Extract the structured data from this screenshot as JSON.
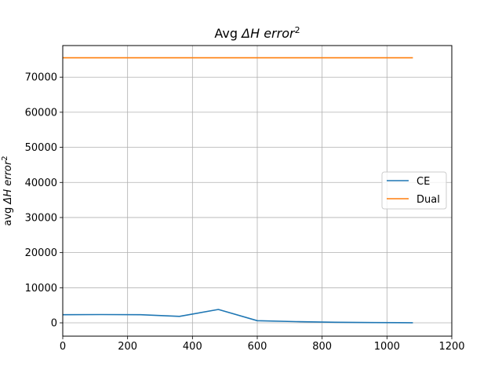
{
  "chart_data": {
    "type": "line",
    "title": "Avg ΔH error²",
    "xlabel": "",
    "ylabel": "avg ΔH error²",
    "xlim": [
      0,
      1200
    ],
    "ylim": [
      -3800,
      79000
    ],
    "x_ticks": [
      0,
      200,
      400,
      600,
      800,
      1000,
      1200
    ],
    "y_ticks": [
      0,
      10000,
      20000,
      30000,
      40000,
      50000,
      60000,
      70000
    ],
    "grid": true,
    "legend_position": "center-right",
    "series": [
      {
        "name": "CE",
        "color": "#1f77b4",
        "x": [
          0,
          120,
          240,
          360,
          480,
          600,
          720,
          840,
          960,
          1080
        ],
        "y": [
          2300,
          2350,
          2300,
          1850,
          3800,
          600,
          350,
          150,
          80,
          30
        ]
      },
      {
        "name": "Dual",
        "color": "#ff7f0e",
        "x": [
          0,
          120,
          240,
          360,
          480,
          600,
          720,
          840,
          960,
          1080
        ],
        "y": [
          75500,
          75500,
          75500,
          75500,
          75500,
          75500,
          75500,
          75500,
          75500,
          75500
        ]
      }
    ]
  }
}
